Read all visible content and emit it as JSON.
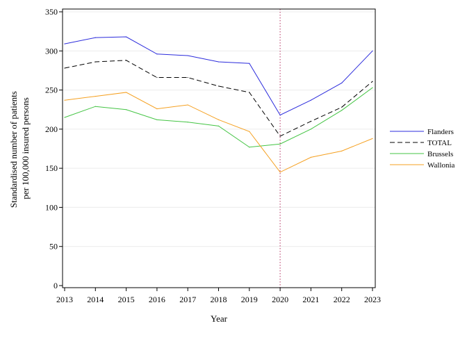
{
  "chart_data": {
    "type": "line",
    "x": [
      2013,
      2014,
      2015,
      2016,
      2017,
      2018,
      2019,
      2020,
      2021,
      2022,
      2023
    ],
    "series": [
      {
        "name": "Flanders",
        "color": "#2b2bdc",
        "dash": "solid",
        "values": [
          309,
          317,
          318,
          296,
          294,
          286,
          284,
          218,
          237,
          259,
          300
        ]
      },
      {
        "name": "TOTAL",
        "color": "#000000",
        "dash": "dashed",
        "values": [
          278,
          286,
          288,
          266,
          266,
          255,
          247,
          191,
          210,
          228,
          261
        ]
      },
      {
        "name": "Brussels",
        "color": "#43c443",
        "dash": "solid",
        "values": [
          215,
          229,
          225,
          212,
          209,
          204,
          177,
          181,
          200,
          224,
          253
        ]
      },
      {
        "name": "Wallonia",
        "color": "#f5a020",
        "dash": "solid",
        "values": [
          237,
          242,
          247,
          226,
          231,
          212,
          197,
          145,
          164,
          172,
          188
        ]
      }
    ],
    "xlabel": "Year",
    "ylabel": [
      "Standardised number of patients",
      "per 100,000 insured persons"
    ],
    "ylim": [
      0,
      350
    ],
    "yticks": [
      0,
      50,
      100,
      150,
      200,
      250,
      300,
      350
    ],
    "grid": "horizontal",
    "reference_line": {
      "x": 2020,
      "color": "#c0507a",
      "style": "dotted"
    },
    "legend": "right"
  }
}
